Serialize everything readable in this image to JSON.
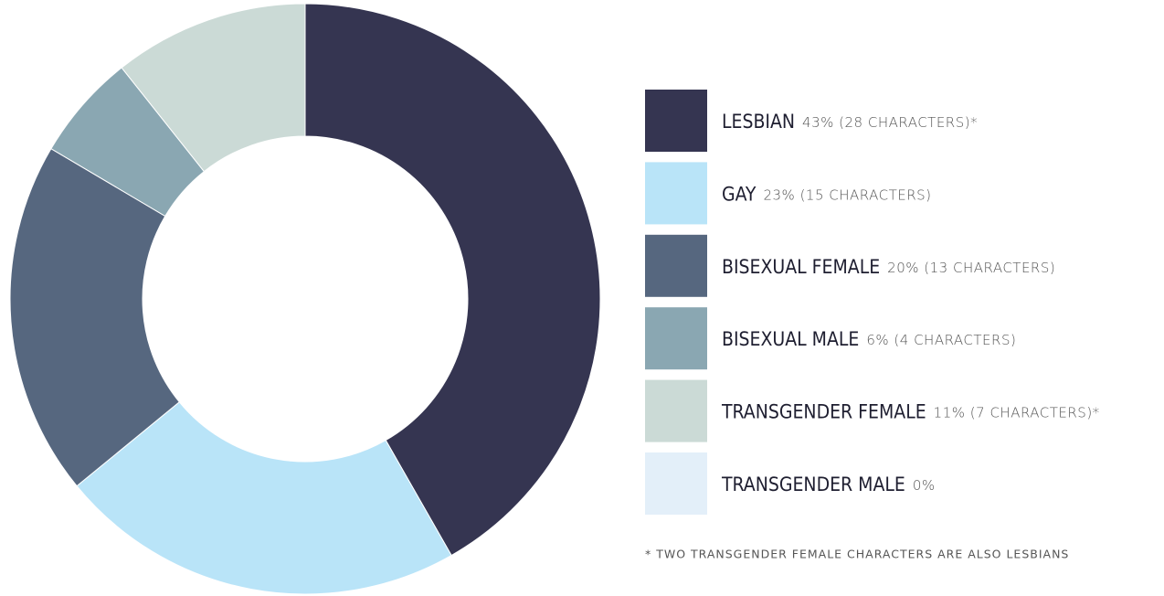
{
  "chart_data": {
    "type": "donut",
    "categories": [
      "LESBIAN",
      "GAY",
      "BISEXUAL FEMALE",
      "BISEXUAL MALE",
      "TRANSGENDER FEMALE",
      "TRANSGENDER MALE"
    ],
    "values": [
      43,
      23,
      20,
      6,
      11,
      0
    ],
    "value_labels": [
      "43% (28 CHARACTERS)*",
      "23% (15 CHARACTERS)",
      "20% (13 CHARACTERS)",
      "6% (4 CHARACTERS)",
      "11% (7 CHARACTERS)*",
      "0%"
    ],
    "colors": [
      "#353551",
      "#b9e4f8",
      "#56677f",
      "#8aa7b2",
      "#cbdad6",
      "#e3eff9"
    ],
    "legend": "right",
    "footnote": "* TWO TRANSGENDER FEMALE CHARACTERS ARE ALSO LESBIANS"
  }
}
